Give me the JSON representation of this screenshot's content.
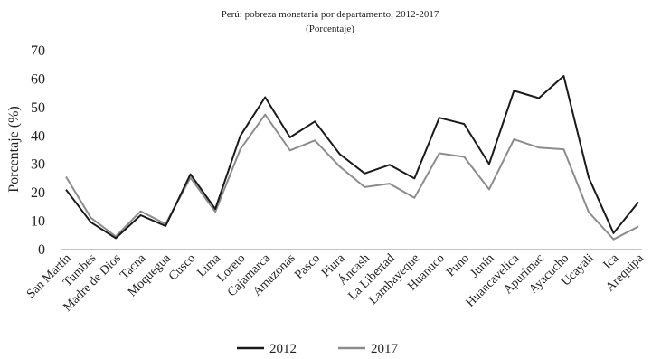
{
  "chart_data": {
    "type": "line",
    "title": "Perú: pobreza monetaria por departamento, 2012-2017",
    "subtitle": "(Porcentaje)",
    "xlabel": "",
    "ylabel": "Porcentaje (%)",
    "ylim": [
      0,
      70
    ],
    "yticks": [
      0,
      10,
      20,
      30,
      40,
      50,
      60,
      70
    ],
    "grid": false,
    "legend_position": "bottom",
    "categories": [
      "San Martín",
      "Tumbes",
      "Madre de Dios",
      "Tacna",
      "Moquegua",
      "Cusco",
      "Lima",
      "Loreto",
      "Cajamarca",
      "Amazonas",
      "Pasco",
      "Piura",
      "Áncash",
      "La Libertad",
      "Lambayeque",
      "Huánuco",
      "Puno",
      "Junín",
      "Huancavelica",
      "Apurímac",
      "Ayacucho",
      "Ucayali",
      "Ica",
      "Arequipa"
    ],
    "series": [
      {
        "name": "2012",
        "color": "#1a1a1a",
        "values": [
          21.1,
          9.6,
          4.0,
          12.1,
          8.3,
          26.5,
          14.3,
          40.0,
          53.6,
          39.5,
          45.1,
          33.6,
          26.8,
          29.8,
          25.0,
          46.4,
          44.2,
          30.1,
          55.9,
          53.3,
          61.1,
          25.4,
          5.8,
          16.7
        ]
      },
      {
        "name": "2017",
        "color": "#8c8c8c",
        "values": [
          25.6,
          11.2,
          4.6,
          13.5,
          9.0,
          25.3,
          13.3,
          35.3,
          47.5,
          34.9,
          38.4,
          29.2,
          22.0,
          23.2,
          18.2,
          33.9,
          32.6,
          21.2,
          38.8,
          35.9,
          35.3,
          13.2,
          3.6,
          8.1
        ]
      }
    ]
  }
}
